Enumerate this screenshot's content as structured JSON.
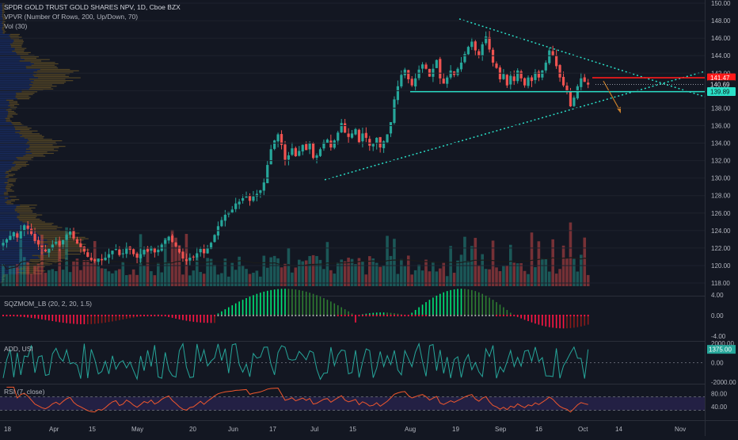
{
  "header": {
    "title": "SPDR GOLD TRUST GOLD SHARES NPV, 1D, Cboe BZX",
    "vpvr": "VPVR (Number Of Rows, 200, Up/Down, 70)",
    "vol": "Vol (30)"
  },
  "panes": {
    "sqzmom": "SQZMOM_LB (20, 2, 20, 1.5)",
    "add": "ADD, USI",
    "rsi": "RSI (7, close)"
  },
  "colors": {
    "background": "#131722",
    "up": "#26a69a",
    "down": "#ef5350",
    "teal_line": "#2ae0c8",
    "red_line": "#ff1a1a",
    "rsi_line": "#f0572d",
    "rsi_band": "#2a2450",
    "add_line": "#26a69a",
    "arrow": "#c77d2b"
  },
  "chart_data": [
    {
      "type": "candlestick",
      "name": "SPDR GOLD TRUST GOLD SHARES NPV, 1D",
      "y_axis": {
        "min": 118,
        "max": 150,
        "step": 2,
        "ticks": [
          "118.00",
          "120.00",
          "122.00",
          "124.00",
          "126.00",
          "128.00",
          "130.00",
          "132.00",
          "134.00",
          "136.00",
          "138.00",
          "140.00",
          "142.00",
          "144.00",
          "146.00",
          "148.00",
          "150.00"
        ]
      },
      "x_labels": [
        "18",
        "Apr",
        "15",
        "May",
        "20",
        "Jun",
        "17",
        "Jul",
        "15",
        "Aug",
        "19",
        "Sep",
        "16",
        "Oct",
        "14",
        "Nov"
      ],
      "price_labels": [
        {
          "text": "141.47",
          "kind": "red"
        },
        {
          "text": "140.69",
          "kind": "last"
        },
        {
          "text": "139.89",
          "kind": "teal"
        }
      ],
      "horizontal_levels": [
        {
          "value": 141.47,
          "color": "red"
        },
        {
          "value": 139.89,
          "color": "teal"
        }
      ],
      "closes": [
        122.6,
        123.0,
        123.4,
        123.8,
        123.2,
        124.0,
        124.6,
        124.2,
        123.6,
        122.8,
        122.4,
        121.9,
        121.6,
        121.9,
        122.4,
        122.7,
        122.3,
        122.9,
        123.5,
        123.9,
        123.1,
        122.5,
        122.1,
        121.6,
        121.0,
        120.6,
        120.5,
        120.8,
        120.6,
        120.9,
        121.3,
        121.7,
        121.9,
        121.2,
        121.4,
        122.1,
        121.8,
        121.3,
        120.9,
        121.3,
        121.8,
        121.6,
        122.1,
        121.5,
        121.8,
        122.4,
        122.9,
        123.3,
        122.7,
        122.2,
        121.5,
        120.8,
        120.5,
        120.9,
        121.0,
        121.4,
        121.9,
        121.4,
        122.0,
        122.6,
        123.5,
        124.5,
        125.2,
        125.8,
        126.1,
        126.4,
        127.1,
        127.3,
        127.7,
        127.9,
        127.4,
        127.9,
        128.2,
        128.6,
        129.5,
        131.5,
        133.3,
        134.3,
        135.0,
        133.8,
        132.1,
        132.6,
        133.4,
        132.5,
        133.1,
        133.8,
        133.2,
        134.0,
        132.3,
        132.6,
        133.3,
        134.1,
        134.4,
        133.5,
        134.3,
        135.2,
        136.3,
        135.2,
        134.7,
        135.1,
        135.6,
        134.1,
        135.1,
        134.6,
        133.7,
        133.9,
        134.6,
        133.5,
        134.2,
        135.0,
        136.4,
        139.0,
        140.5,
        141.8,
        142.4,
        141.3,
        140.6,
        141.4,
        142.4,
        143.0,
        142.5,
        141.6,
        142.5,
        143.5,
        141.4,
        140.8,
        141.5,
        142.3,
        141.8,
        142.5,
        143.2,
        144.2,
        145.0,
        145.6,
        144.6,
        144.0,
        145.3,
        146.2,
        144.7,
        143.2,
        142.6,
        141.3,
        141.9,
        140.6,
        141.7,
        141.1,
        142.3,
        141.4,
        140.6,
        141.5,
        141.1,
        142.1,
        141.5,
        142.3,
        143.2,
        144.6,
        144.0,
        142.8,
        141.5,
        140.6,
        140.0,
        138.2,
        139.2,
        140.5,
        141.4,
        141.0,
        140.69
      ],
      "volume_scale": "relative",
      "volume_ma_label": "Vol (30)"
    },
    {
      "type": "bar",
      "name": "SQZMOM_LB (20, 2, 20, 1.5)",
      "y_axis": {
        "ticks": [
          "4.00",
          "0.00",
          "-4.00"
        ],
        "min": -4,
        "max": 4
      }
    },
    {
      "type": "line",
      "name": "ADD, USI",
      "y_axis": {
        "ticks": [
          "2000.00",
          "0.00",
          "-2000.00"
        ],
        "min": -2000,
        "max": 2000
      },
      "last_value_label": "1375.00"
    },
    {
      "type": "line",
      "name": "RSI (7, close)",
      "y_axis": {
        "ticks": [
          "80.00",
          "40.00"
        ],
        "min": 0,
        "max": 100
      },
      "band": [
        30,
        70
      ]
    }
  ]
}
